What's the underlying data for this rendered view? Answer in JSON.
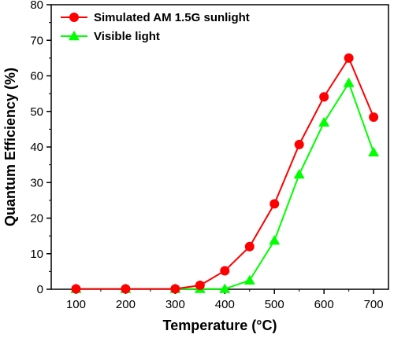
{
  "chart_data": {
    "type": "line",
    "xlabel": "Temperature (°C)",
    "ylabel": "Quantum Efficiency (%)",
    "xlim": [
      50,
      730
    ],
    "ylim": [
      0,
      80
    ],
    "xticks": [
      100,
      200,
      300,
      400,
      500,
      600,
      700
    ],
    "yticks": [
      0,
      10,
      20,
      30,
      40,
      50,
      60,
      70,
      80
    ],
    "grid": false,
    "legend_position": "top-left",
    "series": [
      {
        "name": "Simulated AM 1.5G sunlight",
        "color": "#ff0000",
        "marker": "circle",
        "x": [
          100,
          200,
          300,
          350,
          400,
          450,
          500,
          550,
          600,
          650,
          700
        ],
        "y": [
          0.1,
          0.1,
          0.1,
          1.1,
          5.2,
          12.0,
          24.0,
          40.7,
          54.1,
          65.0,
          48.4
        ]
      },
      {
        "name": "Visible light",
        "color": "#00ff00",
        "marker": "triangle",
        "x": [
          100,
          200,
          300,
          350,
          400,
          450,
          500,
          550,
          600,
          650,
          700
        ],
        "y": [
          0.1,
          0.1,
          0.1,
          0.1,
          0.1,
          2.5,
          13.7,
          32.3,
          46.9,
          58.0,
          38.5
        ]
      }
    ]
  }
}
